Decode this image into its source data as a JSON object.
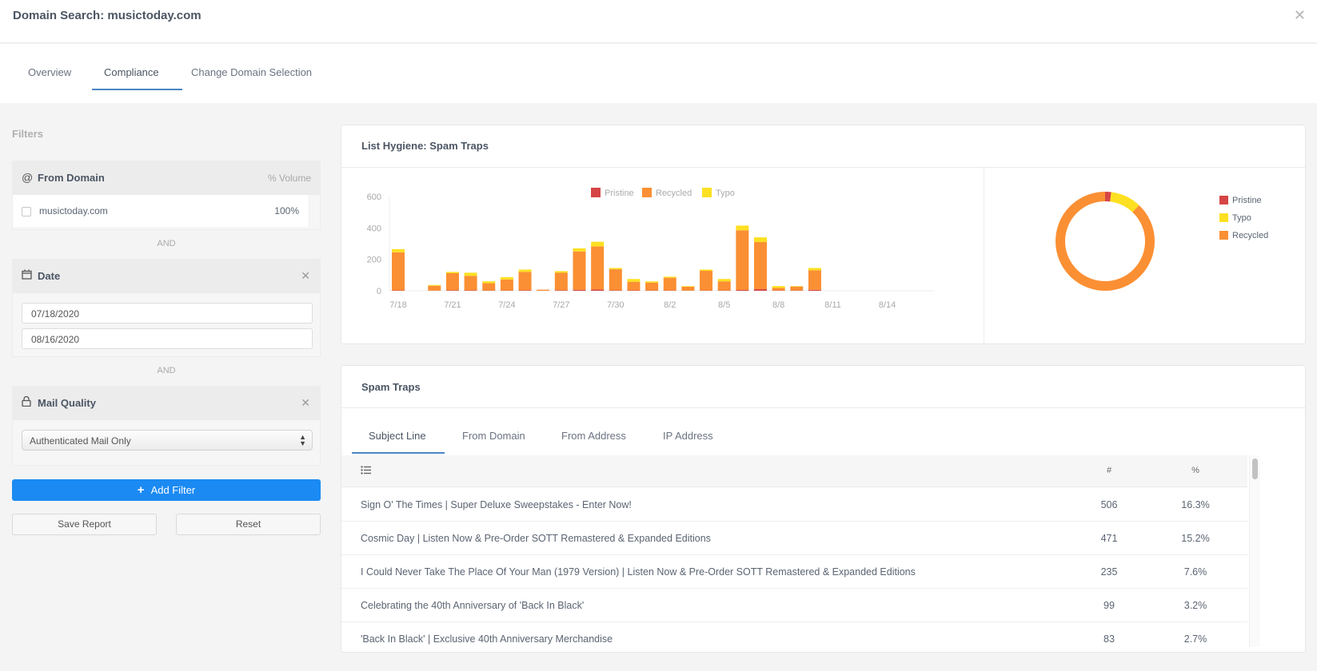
{
  "header": {
    "title": "Domain Search: musictoday.com",
    "close_icon": "close-icon"
  },
  "tabs": [
    {
      "label": "Overview",
      "active": false
    },
    {
      "label": "Compliance",
      "active": true
    },
    {
      "label": "Change Domain Selection",
      "active": false
    }
  ],
  "filters": {
    "title": "Filters",
    "from_domain": {
      "icon": "at-icon",
      "label": "From Domain",
      "column": "% Volume",
      "items": [
        {
          "domain": "musictoday.com",
          "volume": "100%",
          "checked": false
        }
      ]
    },
    "and_label": "AND",
    "date": {
      "icon": "calendar-icon",
      "label": "Date",
      "start": "07/18/2020",
      "end": "08/16/2020"
    },
    "mail_quality": {
      "icon": "lock-icon",
      "label": "Mail Quality",
      "selected": "Authenticated Mail Only"
    },
    "add_filter_label": "Add Filter",
    "save_report_label": "Save Report",
    "reset_label": "Reset"
  },
  "list_hygiene": {
    "title": "List Hygiene: Spam Traps"
  },
  "spam_traps": {
    "title": "Spam Traps",
    "tabs": [
      {
        "label": "Subject Line",
        "active": true
      },
      {
        "label": "From Domain",
        "active": false
      },
      {
        "label": "From Address",
        "active": false
      },
      {
        "label": "IP Address",
        "active": false
      }
    ],
    "columns": {
      "num": "#",
      "pct": "%"
    },
    "rows": [
      {
        "subject": "Sign O' The Times | Super Deluxe Sweepstakes - Enter Now!",
        "num": "506",
        "pct": "16.3%"
      },
      {
        "subject": "Cosmic Day | Listen Now & Pre-Order SOTT Remastered & Expanded Editions",
        "num": "471",
        "pct": "15.2%"
      },
      {
        "subject": "I Could Never Take The Place Of Your Man (1979 Version) | Listen Now & Pre-Order SOTT Remastered & Expanded Editions",
        "num": "235",
        "pct": "7.6%"
      },
      {
        "subject": "Celebrating the 40th Anniversary of 'Back In Black'",
        "num": "99",
        "pct": "3.2%"
      },
      {
        "subject": "'Back In Black' | Exclusive 40th Anniversary Merchandise",
        "num": "83",
        "pct": "2.7%"
      }
    ]
  },
  "colors": {
    "pristine": "#d64545",
    "recycled": "#fb8f33",
    "typo": "#fde021",
    "accent": "#1b8af2",
    "tab_underline": "#4a86c5"
  },
  "chart_data": [
    {
      "type": "bar",
      "stacked": true,
      "title": "List Hygiene: Spam Traps",
      "xlabel": "",
      "ylabel": "",
      "ylim": [
        0,
        600
      ],
      "yticks": [
        0,
        200,
        400,
        600
      ],
      "xtick_labels": [
        "7/18",
        "7/21",
        "7/24",
        "7/27",
        "7/30",
        "8/2",
        "8/5",
        "8/8",
        "8/11",
        "8/14"
      ],
      "legend": [
        "Pristine",
        "Recycled",
        "Typo"
      ],
      "legend_position": "top",
      "grid": false,
      "categories": [
        "7/18",
        "7/19",
        "7/20",
        "7/21",
        "7/22",
        "7/23",
        "7/24",
        "7/25",
        "7/26",
        "7/27",
        "7/28",
        "7/29",
        "7/30",
        "7/31",
        "8/1",
        "8/2",
        "8/3",
        "8/4",
        "8/5",
        "8/6",
        "8/7",
        "8/8",
        "8/9",
        "8/10",
        "8/11",
        "8/12",
        "8/13",
        "8/14",
        "8/15",
        "8/16"
      ],
      "series": [
        {
          "name": "Pristine",
          "values": [
            3,
            0,
            1,
            4,
            3,
            2,
            2,
            4,
            0,
            4,
            6,
            8,
            3,
            3,
            2,
            2,
            1,
            2,
            2,
            5,
            10,
            2,
            2,
            6,
            0,
            0,
            0,
            0,
            0,
            0
          ]
        },
        {
          "name": "Recycled",
          "values": [
            242,
            0,
            31,
            108,
            92,
            46,
            70,
            116,
            7,
            111,
            244,
            274,
            134,
            54,
            50,
            81,
            25,
            125,
            58,
            380,
            300,
            16,
            25,
            124,
            0,
            0,
            0,
            0,
            0,
            0
          ]
        },
        {
          "name": "Typo",
          "values": [
            20,
            0,
            5,
            8,
            20,
            12,
            15,
            15,
            0,
            10,
            20,
            30,
            8,
            18,
            8,
            7,
            4,
            8,
            15,
            30,
            30,
            12,
            3,
            15,
            0,
            0,
            0,
            0,
            0,
            0
          ]
        }
      ]
    },
    {
      "type": "pie",
      "donut": true,
      "title": "",
      "categories": [
        "Pristine",
        "Typo",
        "Recycled"
      ],
      "values": [
        2,
        10,
        88
      ],
      "legend_position": "right"
    }
  ]
}
